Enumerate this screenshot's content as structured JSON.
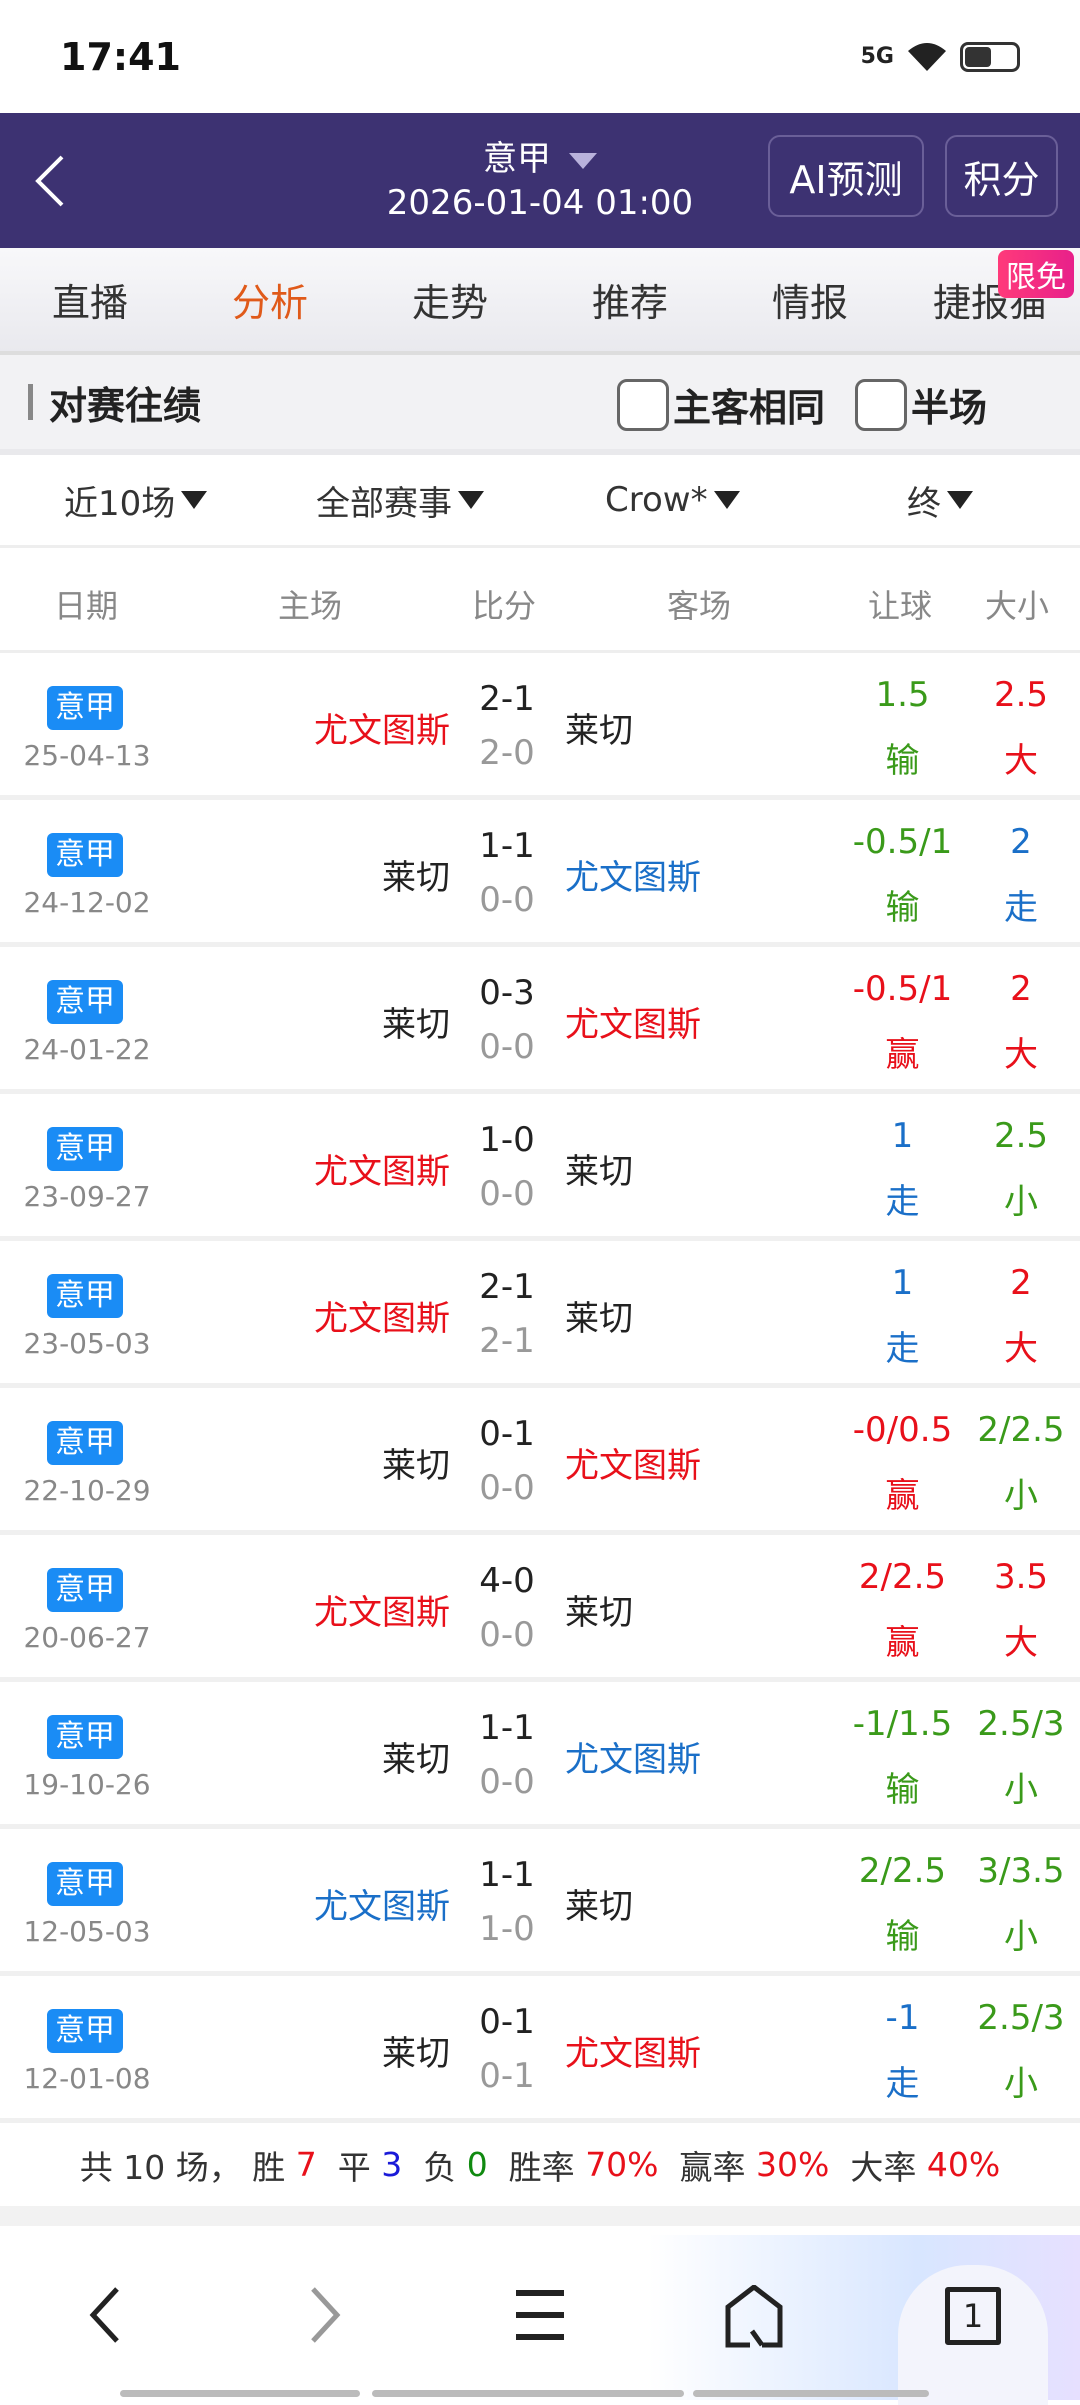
{
  "status": {
    "time": "17:41",
    "network": "5G"
  },
  "header": {
    "league": "意甲",
    "datetime": "2026-01-04 01:00",
    "ai_button": "AI预测",
    "points_button": "积分"
  },
  "tabs": [
    {
      "label": "直播"
    },
    {
      "label": "分析",
      "active": true
    },
    {
      "label": "走势"
    },
    {
      "label": "推荐"
    },
    {
      "label": "情报"
    },
    {
      "label": "捷报猫"
    }
  ],
  "free_badge": "限免",
  "section": {
    "title": "对赛往绩",
    "checkbox_same": "主客相同",
    "checkbox_half": "半场"
  },
  "filters": {
    "count": "近10场",
    "competition": "全部赛事",
    "bookmaker": "Crow*",
    "phase": "终"
  },
  "columns": {
    "date": "日期",
    "home": "主场",
    "score": "比分",
    "away": "客场",
    "handicap": "让球",
    "ou": "大小"
  },
  "colors": {
    "red": "#e8101a",
    "green": "#3a9a1a",
    "blue": "#1a6fc8",
    "default": "#222222",
    "accent": "#e05a1a",
    "header_bg": "#3d3272",
    "league_badge": "#1a8cf5"
  },
  "rows": [
    {
      "league": "意甲",
      "date": "25-04-13",
      "home": "尤文图斯",
      "home_color": "red",
      "score": "2-1",
      "half": "2-0",
      "away": "莱切",
      "away_color": "default",
      "hc": "1.5",
      "hc_res": "输",
      "hc_color": "green",
      "ou": "2.5",
      "ou_res": "大",
      "ou_color": "red"
    },
    {
      "league": "意甲",
      "date": "24-12-02",
      "home": "莱切",
      "home_color": "default",
      "score": "1-1",
      "half": "0-0",
      "away": "尤文图斯",
      "away_color": "blue",
      "hc": "-0.5/1",
      "hc_res": "输",
      "hc_color": "green",
      "ou": "2",
      "ou_res": "走",
      "ou_color": "blue"
    },
    {
      "league": "意甲",
      "date": "24-01-22",
      "home": "莱切",
      "home_color": "default",
      "score": "0-3",
      "half": "0-0",
      "away": "尤文图斯",
      "away_color": "red",
      "hc": "-0.5/1",
      "hc_res": "赢",
      "hc_color": "red",
      "ou": "2",
      "ou_res": "大",
      "ou_color": "red"
    },
    {
      "league": "意甲",
      "date": "23-09-27",
      "home": "尤文图斯",
      "home_color": "red",
      "score": "1-0",
      "half": "0-0",
      "away": "莱切",
      "away_color": "default",
      "hc": "1",
      "hc_res": "走",
      "hc_color": "blue",
      "ou": "2.5",
      "ou_res": "小",
      "ou_color": "green"
    },
    {
      "league": "意甲",
      "date": "23-05-03",
      "home": "尤文图斯",
      "home_color": "red",
      "score": "2-1",
      "half": "2-1",
      "away": "莱切",
      "away_color": "default",
      "hc": "1",
      "hc_res": "走",
      "hc_color": "blue",
      "ou": "2",
      "ou_res": "大",
      "ou_color": "red"
    },
    {
      "league": "意甲",
      "date": "22-10-29",
      "home": "莱切",
      "home_color": "default",
      "score": "0-1",
      "half": "0-0",
      "away": "尤文图斯",
      "away_color": "red",
      "hc": "-0/0.5",
      "hc_res": "赢",
      "hc_color": "red",
      "ou": "2/2.5",
      "ou_res": "小",
      "ou_color": "green"
    },
    {
      "league": "意甲",
      "date": "20-06-27",
      "home": "尤文图斯",
      "home_color": "red",
      "score": "4-0",
      "half": "0-0",
      "away": "莱切",
      "away_color": "default",
      "hc": "2/2.5",
      "hc_res": "赢",
      "hc_color": "red",
      "ou": "3.5",
      "ou_res": "大",
      "ou_color": "red"
    },
    {
      "league": "意甲",
      "date": "19-10-26",
      "home": "莱切",
      "home_color": "default",
      "score": "1-1",
      "half": "0-0",
      "away": "尤文图斯",
      "away_color": "blue",
      "hc": "-1/1.5",
      "hc_res": "输",
      "hc_color": "green",
      "ou": "2.5/3",
      "ou_res": "小",
      "ou_color": "green"
    },
    {
      "league": "意甲",
      "date": "12-05-03",
      "home": "尤文图斯",
      "home_color": "blue",
      "score": "1-1",
      "half": "1-0",
      "away": "莱切",
      "away_color": "default",
      "hc": "2/2.5",
      "hc_res": "输",
      "hc_color": "green",
      "ou": "3/3.5",
      "ou_res": "小",
      "ou_color": "green"
    },
    {
      "league": "意甲",
      "date": "12-01-08",
      "home": "莱切",
      "home_color": "default",
      "score": "0-1",
      "half": "0-1",
      "away": "尤文图斯",
      "away_color": "red",
      "hc": "-1",
      "hc_res": "走",
      "hc_color": "blue",
      "ou": "2.5/3",
      "ou_res": "小",
      "ou_color": "green"
    }
  ],
  "summary": {
    "total": "共 10 场，",
    "win_label": " 胜 ",
    "win": "7",
    "draw_label": "  平 ",
    "draw": "3",
    "loss_label": "  负 ",
    "loss": "0",
    "winrate_label": "  胜率 ",
    "winrate": "70%",
    "hcrate_label": "  赢率 ",
    "hcrate": "30%",
    "overrate_label": "  大率 ",
    "overrate": "40%"
  },
  "bottom_nav": {
    "tab_count": "1"
  }
}
